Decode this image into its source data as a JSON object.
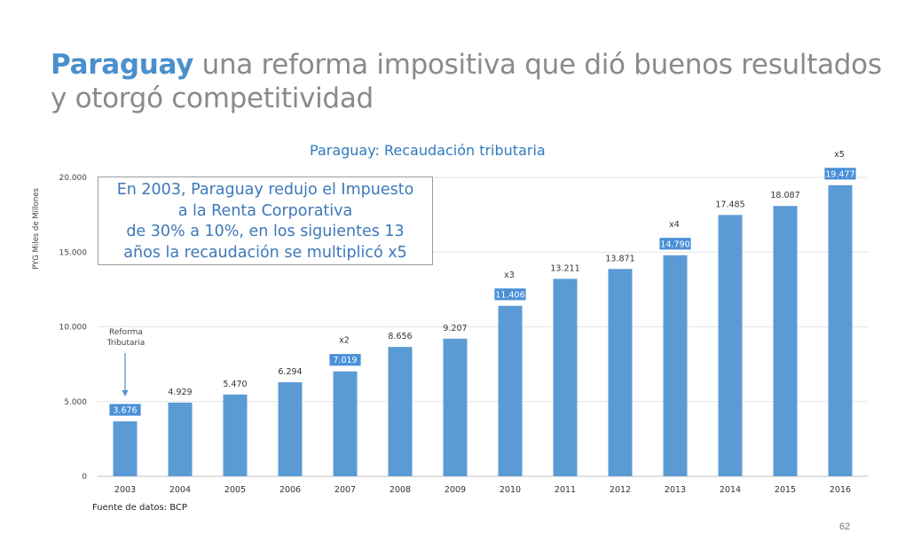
{
  "slide": {
    "title_accent": "Paraguay",
    "title_rest": " una reforma impositiva que dió buenos resultados y otorgó competitividad",
    "source": "Fuente de datos: BCP",
    "page_number": "62"
  },
  "callout": {
    "lines": [
      "En 2003, Paraguay redujo el Impuesto",
      "a la Renta Corporativa",
      "de 30% a 10%, en los siguientes 13",
      "años la recaudación se multiplicó x5"
    ]
  },
  "chart_data": {
    "type": "bar",
    "title": "Paraguay: Recaudación tributaria",
    "ylabel": "PYG Miles de Millones",
    "xlabel": "",
    "ylim": [
      0,
      20000
    ],
    "yticks": [
      0,
      5000,
      10000,
      15000,
      20000
    ],
    "ytick_labels": [
      "0",
      "5.000",
      "10.000",
      "15.000",
      "20.000"
    ],
    "categories": [
      "2003",
      "2004",
      "2005",
      "2006",
      "2007",
      "2008",
      "2009",
      "2010",
      "2011",
      "2012",
      "2013",
      "2014",
      "2015",
      "2016"
    ],
    "values": [
      3676,
      4929,
      5470,
      6294,
      7019,
      8656,
      9207,
      11406,
      13211,
      13871,
      14790,
      17485,
      18087,
      19477
    ],
    "value_labels": [
      "3.676",
      "4.929",
      "5.470",
      "6.294",
      "7.019",
      "8.656",
      "9.207",
      "11.406",
      "13.211",
      "13.871",
      "14.790",
      "17.485",
      "18.087",
      "19.477"
    ],
    "highlighted": [
      "2003",
      "2007",
      "2010",
      "2013",
      "2016"
    ],
    "multipliers": [
      {
        "category": "2007",
        "label": "x2"
      },
      {
        "category": "2010",
        "label": "x3"
      },
      {
        "category": "2013",
        "label": "x4"
      },
      {
        "category": "2016",
        "label": "x5"
      }
    ],
    "annotation": {
      "category": "2003",
      "lines": [
        "Reforma",
        "Tributaria"
      ]
    },
    "bar_color": "#5b9bd5",
    "label_box_color": "#4a90d9",
    "grid": true,
    "legend": false
  }
}
